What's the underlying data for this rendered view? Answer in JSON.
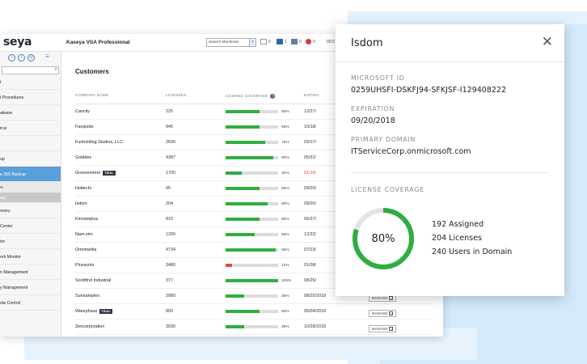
{
  "app": {
    "logo": "seya",
    "product": "Kaseya VSA Professional",
    "search_placeholder": "Search Machines",
    "status": [
      {
        "icon": "mail-icon",
        "count": "0"
      },
      {
        "icon": "monitor-icon",
        "count": "1"
      },
      {
        "icon": "task-icon",
        "count": "0"
      },
      {
        "icon": "alarm-icon",
        "count": "0"
      }
    ],
    "clock": "00:0"
  },
  "sidebar": {
    "items": [
      {
        "label": "t",
        "state": ""
      },
      {
        "label": "t Procedures",
        "state": ""
      },
      {
        "label": "alware",
        "state": ""
      },
      {
        "label": "irus",
        "state": ""
      },
      {
        "label": "",
        "state": ""
      },
      {
        "label": "up",
        "state": ""
      },
      {
        "label": "e 365 Backup",
        "state": "active"
      },
      {
        "label": "w",
        "state": "sub"
      },
      {
        "label": "ers",
        "state": "sub-active"
      },
      {
        "label": "overy",
        "state": ""
      },
      {
        "label": "Center",
        "state": ""
      },
      {
        "label": "tor",
        "state": ""
      },
      {
        "label": "ork Monitor",
        "state": ""
      },
      {
        "label": "n Management",
        "state": ""
      },
      {
        "label": "y Management",
        "state": ""
      },
      {
        "label": "ote Control",
        "state": ""
      }
    ]
  },
  "main": {
    "title": "Customers",
    "columns": {
      "company": "COMPANY NAME",
      "licenses": "LICENSES",
      "coverage": "LICENSE COVERAGE",
      "expiration": "EXPIRA"
    },
    "manage_label": "MANAGE",
    "rows": [
      {
        "name": "Cancity",
        "trial": false,
        "licenses": "225",
        "coverage": 65,
        "coverage_label": "65%",
        "expiration": "12/27/",
        "expired": false,
        "manage": false
      },
      {
        "name": "Faxquote",
        "trial": false,
        "licenses": "945",
        "coverage": 65,
        "coverage_label": "65%",
        "expiration": "10/18/",
        "expired": false,
        "manage": false
      },
      {
        "name": "Funholding Studios, LLC.",
        "trial": false,
        "licenses": "2600",
        "coverage": 75,
        "coverage_label": "75%",
        "expiration": "03/17/",
        "expired": false,
        "manage": false
      },
      {
        "name": "Golddex",
        "trial": false,
        "licenses": "4387",
        "coverage": 90,
        "coverage_label": "90%",
        "expiration": "05/31/",
        "expired": false,
        "manage": false
      },
      {
        "name": "Groovestreet",
        "trial": true,
        "licenses": "1700",
        "coverage": 30,
        "coverage_label": "30%",
        "expiration": "01/16/",
        "expired": true,
        "manage": false
      },
      {
        "name": "Hottechi",
        "trial": false,
        "licenses": "95",
        "coverage": 65,
        "coverage_label": "65%",
        "expiration": "09/20/",
        "expired": false,
        "manage": false
      },
      {
        "name": "Isdom",
        "trial": false,
        "licenses": "204",
        "coverage": 80,
        "coverage_label": "80%",
        "expiration": "09/20/",
        "expired": false,
        "manage": false
      },
      {
        "name": "Kinnamplus",
        "trial": false,
        "licenses": "815",
        "coverage": 65,
        "coverage_label": "65%",
        "expiration": "06/27/",
        "expired": false,
        "manage": false
      },
      {
        "name": "Nam-zim",
        "trial": false,
        "licenses": "1200",
        "coverage": 55,
        "coverage_label": "55%",
        "expiration": "12/22/",
        "expired": false,
        "manage": false
      },
      {
        "name": "Ontomedia",
        "trial": false,
        "licenses": "4734",
        "coverage": 95,
        "coverage_label": "95%",
        "expiration": "07/23/",
        "expired": false,
        "manage": false
      },
      {
        "name": "Plussunin",
        "trial": false,
        "licenses": "3480",
        "coverage": 12,
        "coverage_label": "12%",
        "expiration": "01/08/",
        "expired": false,
        "manage": false
      },
      {
        "name": "Scottfind Industrial",
        "trial": false,
        "licenses": "377",
        "coverage": 100,
        "coverage_label": "100%",
        "expiration": "08/25/",
        "expired": false,
        "manage": false
      },
      {
        "name": "Sunnamplex",
        "trial": false,
        "licenses": "3980",
        "coverage": 35,
        "coverage_label": "35%",
        "expiration": "08/25/2018",
        "expired": false,
        "manage": true
      },
      {
        "name": "Warephase",
        "trial": true,
        "licenses": "800",
        "coverage": 65,
        "coverage_label": "65%",
        "expiration": "05/04/2018",
        "expired": false,
        "manage": true
      },
      {
        "name": "Zencorporation",
        "trial": false,
        "licenses": "3030",
        "coverage": 35,
        "coverage_label": "35%",
        "expiration": "10/28/2018",
        "expired": false,
        "manage": true
      }
    ],
    "trial_label": "TRIAL"
  },
  "panel": {
    "title": "Isdom",
    "microsoft_id_label": "MICROSOFT ID",
    "microsoft_id": "0259UHSFI-DSKFJ94-SFKJSF-I129408222",
    "expiration_label": "EXPIRATION",
    "expiration": "09/20/2018",
    "domain_label": "PRIMARY DOMAIN",
    "domain": "ITServiceCorp.onmicrosoft.com",
    "coverage_label": "LICENSE COVERAGE",
    "coverage_percent": 80,
    "coverage_text": "80%",
    "assigned": "192 Assigned",
    "licenses": "204 Licenses",
    "users": "240 Users in Domain",
    "colors": {
      "ring": "#2eae3e",
      "track": "#e3e3e3"
    }
  }
}
